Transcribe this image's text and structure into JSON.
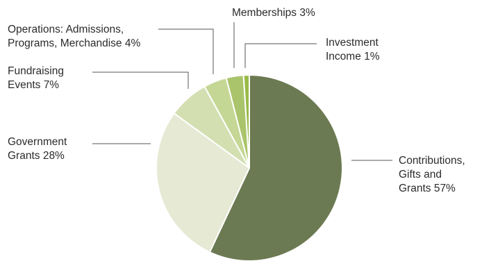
{
  "chart_data": {
    "type": "pie",
    "title": "",
    "start": "12 o'clock, clockwise",
    "slices": [
      {
        "name": "Contributions, Gifts and Grants",
        "value": 57,
        "label_lines": [
          "Contributions,",
          "Gifts and",
          "Grants 57%"
        ],
        "color": "#6b7a52"
      },
      {
        "name": "Government Grants",
        "value": 28,
        "label_lines": [
          "Government",
          "Grants 28%"
        ],
        "color": "#e6e9d3"
      },
      {
        "name": "Fundraising Events",
        "value": 7,
        "label_lines": [
          "Fundraising",
          "Events 7%"
        ],
        "color": "#d3dfb1"
      },
      {
        "name": "Operations: Admissions, Programs, Merchandise",
        "value": 4,
        "label_lines": [
          "Operations: Admissions,",
          "Programs, Merchandise 4%"
        ],
        "color": "#c4d795"
      },
      {
        "name": "Memberships",
        "value": 3,
        "label_lines": [
          "Memberships 3%"
        ],
        "color": "#aac46c"
      },
      {
        "name": "Investment Income",
        "value": 1,
        "label_lines": [
          "Investment",
          "Income 1%"
        ],
        "color": "#98ba48"
      }
    ]
  }
}
